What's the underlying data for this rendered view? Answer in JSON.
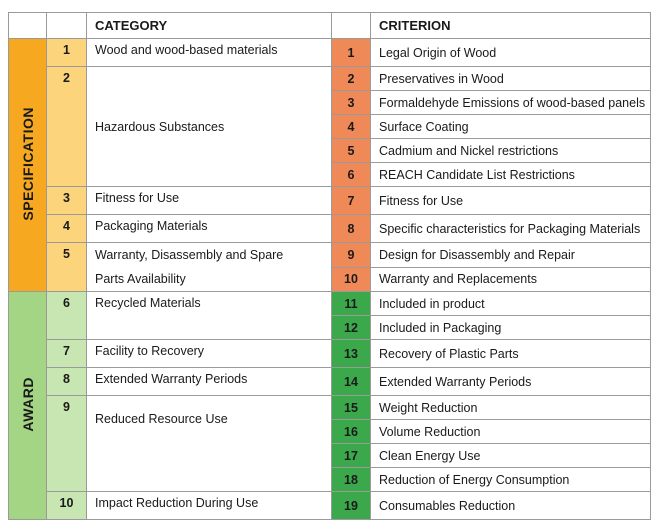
{
  "header": {
    "category": "CATEGORY",
    "criterion": "CRITERION"
  },
  "groups": [
    {
      "label": "SPECIFICATION",
      "categories": [
        {
          "number": 1,
          "name": "Wood and wood-based materials",
          "criteria": [
            {
              "number": 1,
              "name": "Legal Origin of Wood"
            }
          ]
        },
        {
          "number": 2,
          "name": "Hazardous Substances",
          "criteria": [
            {
              "number": 2,
              "name": "Preservatives in Wood"
            },
            {
              "number": 3,
              "name": "Formaldehyde Emissions of wood-based panels"
            },
            {
              "number": 4,
              "name": "Surface Coating"
            },
            {
              "number": 5,
              "name": "Cadmium and Nickel restrictions"
            },
            {
              "number": 6,
              "name": "REACH Candidate List Restrictions"
            }
          ]
        },
        {
          "number": 3,
          "name": "Fitness for Use",
          "criteria": [
            {
              "number": 7,
              "name": "Fitness for Use"
            }
          ]
        },
        {
          "number": 4,
          "name": "Packaging Materials",
          "criteria": [
            {
              "number": 8,
              "name": "Specific characteristics for Packaging Materials"
            }
          ]
        },
        {
          "number": 5,
          "lines": [
            "Warranty, Disassembly and Spare",
            "Parts Availability"
          ],
          "criteria": [
            {
              "number": 9,
              "name": "Design for Disassembly and Repair"
            },
            {
              "number": 10,
              "name": "Warranty and Replacements"
            }
          ]
        }
      ]
    },
    {
      "label": "AWARD",
      "categories": [
        {
          "number": 6,
          "name": "Recycled Materials",
          "criteria": [
            {
              "number": 11,
              "name": "Included in product"
            },
            {
              "number": 12,
              "name": "Included in Packaging"
            }
          ]
        },
        {
          "number": 7,
          "name": "Facility to Recovery",
          "criteria": [
            {
              "number": 13,
              "name": "Recovery of Plastic Parts"
            }
          ]
        },
        {
          "number": 8,
          "name": "Extended Warranty Periods",
          "criteria": [
            {
              "number": 14,
              "name": "Extended Warranty Periods"
            }
          ]
        },
        {
          "number": 9,
          "name": "Reduced Resource Use",
          "criteria": [
            {
              "number": 15,
              "name": "Weight Reduction"
            },
            {
              "number": 16,
              "name": "Volume Reduction"
            },
            {
              "number": 17,
              "name": "Clean Energy Use"
            },
            {
              "number": 18,
              "name": "Reduction of Energy Consumption"
            }
          ]
        },
        {
          "number": 10,
          "name": "Impact Reduction During Use",
          "criteria": [
            {
              "number": 19,
              "name": "Consumables Reduction"
            }
          ]
        }
      ]
    }
  ]
}
